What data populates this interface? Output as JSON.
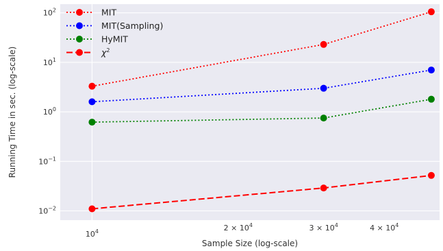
{
  "chart_data": {
    "type": "line",
    "xlabel": "Sample Size (log-scale)",
    "ylabel": "Running Time in sec. (log-scale)",
    "x_scale": "log",
    "y_scale": "log",
    "xlim": [
      8600,
      52000
    ],
    "ylim": [
      0.0065,
      150
    ],
    "grid": true,
    "background": "#eaeaf2",
    "legend_position": "top-left",
    "x": [
      10000,
      30000,
      50000
    ],
    "x_ticks": [
      {
        "value": 10000,
        "base": "10",
        "exp": "4"
      },
      {
        "value": 20000,
        "base": "2 × 10",
        "exp": "4"
      },
      {
        "value": 30000,
        "base": "3 × 10",
        "exp": "4"
      },
      {
        "value": 40000,
        "base": "4 × 10",
        "exp": "4"
      }
    ],
    "x_major": [
      10000
    ],
    "y_ticks": [
      {
        "value": 0.01,
        "base": "10",
        "exp": "−2"
      },
      {
        "value": 0.1,
        "base": "10",
        "exp": "−1"
      },
      {
        "value": 1,
        "base": "10",
        "exp": "0"
      },
      {
        "value": 10,
        "base": "10",
        "exp": "1"
      },
      {
        "value": 100,
        "base": "10",
        "exp": "2"
      }
    ],
    "series": [
      {
        "name": "MIT",
        "values": [
          3.3,
          23,
          105
        ],
        "color": "#ff0000",
        "dash": "dotted"
      },
      {
        "name": "MIT(Sampling)",
        "values": [
          1.6,
          3.0,
          7.0
        ],
        "color": "#0000ff",
        "dash": "dotted"
      },
      {
        "name": "HyMIT",
        "values": [
          0.62,
          0.75,
          1.8
        ],
        "color": "#008000",
        "dash": "dotted"
      },
      {
        "name": "χ",
        "name_sup": "2",
        "values": [
          0.011,
          0.029,
          0.052
        ],
        "color": "#ff0000",
        "dash": "dashed"
      }
    ]
  }
}
